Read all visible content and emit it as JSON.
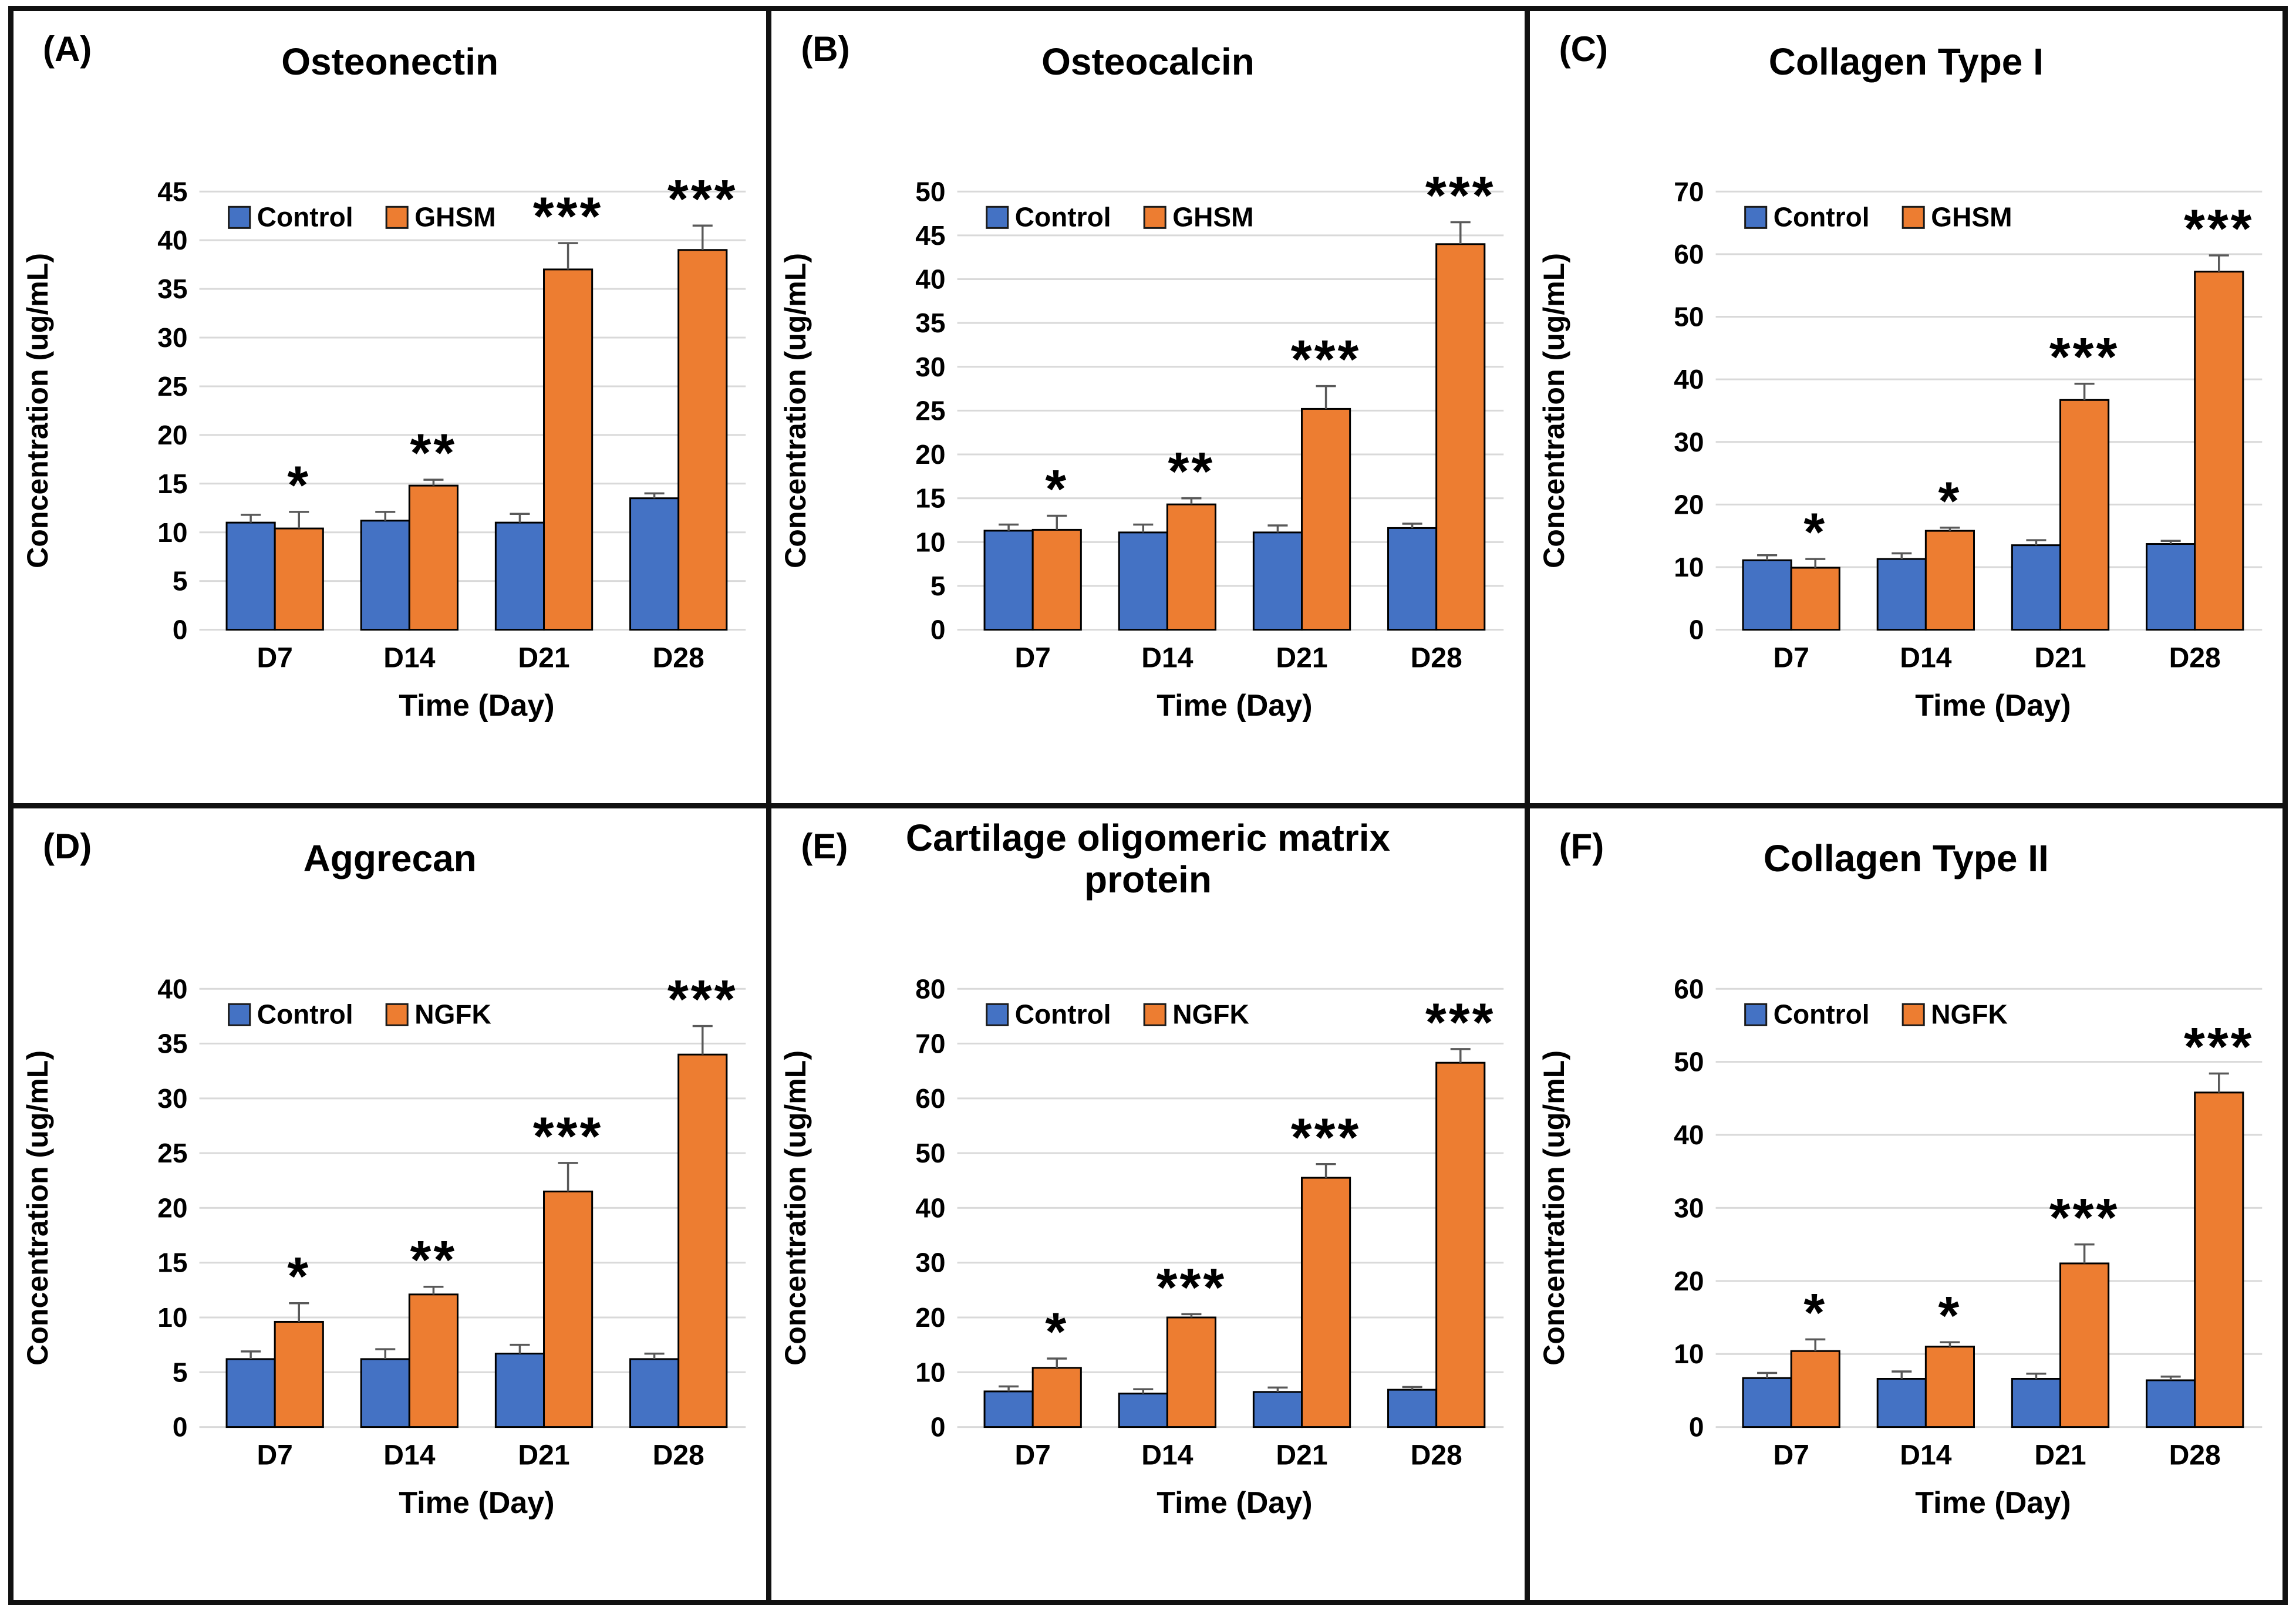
{
  "colors": {
    "control": "#4472C4",
    "treatment": "#ED7D31",
    "gridline": "#D9D9D9",
    "error_bar": "#595959",
    "bar_outline": "#000000",
    "frame": "#111111"
  },
  "chart_data": [
    {
      "type": "bar",
      "panel_label": "(A)",
      "title": "Osteonectin",
      "xlabel": "Time (Day)",
      "ylabel": "Concentration (ug/mL)",
      "ylim": [
        0,
        45
      ],
      "ytick_step": 5,
      "grid": true,
      "legend": [
        "Control",
        "GHSM"
      ],
      "legend_position": "top-left-inside",
      "categories": [
        "D7",
        "D14",
        "D21",
        "D28"
      ],
      "series": [
        {
          "name": "Control",
          "values": [
            11.0,
            11.2,
            11.0,
            13.5
          ],
          "errors": [
            0.8,
            0.9,
            0.9,
            0.5
          ]
        },
        {
          "name": "GHSM",
          "values": [
            10.4,
            14.8,
            37.0,
            39.0
          ],
          "errors": [
            1.7,
            0.6,
            2.7,
            2.5
          ]
        }
      ],
      "significance": [
        "*",
        "**",
        "***",
        "***"
      ]
    },
    {
      "type": "bar",
      "panel_label": "(B)",
      "title": "Osteocalcin",
      "xlabel": "Time (Day)",
      "ylabel": "Concentration (ug/mL)",
      "ylim": [
        0,
        50
      ],
      "ytick_step": 5,
      "grid": true,
      "legend": [
        "Control",
        "GHSM"
      ],
      "legend_position": "top-left-inside",
      "categories": [
        "D7",
        "D14",
        "D21",
        "D28"
      ],
      "series": [
        {
          "name": "Control",
          "values": [
            11.3,
            11.1,
            11.1,
            11.6
          ],
          "errors": [
            0.7,
            0.9,
            0.8,
            0.5
          ]
        },
        {
          "name": "GHSM",
          "values": [
            11.4,
            14.3,
            25.2,
            44.0
          ],
          "errors": [
            1.6,
            0.7,
            2.6,
            2.5
          ]
        }
      ],
      "significance": [
        "*",
        "**",
        "***",
        "***"
      ]
    },
    {
      "type": "bar",
      "panel_label": "(C)",
      "title": "Collagen Type I",
      "xlabel": "Time (Day)",
      "ylabel": "Concentration (ug/mL)",
      "ylim": [
        0,
        70
      ],
      "ytick_step": 10,
      "grid": true,
      "legend": [
        "Control",
        "GHSM"
      ],
      "legend_position": "top-left-inside",
      "categories": [
        "D7",
        "D14",
        "D21",
        "D28"
      ],
      "series": [
        {
          "name": "Control",
          "values": [
            11.1,
            11.3,
            13.5,
            13.7
          ],
          "errors": [
            0.8,
            0.9,
            0.8,
            0.5
          ]
        },
        {
          "name": "GHSM",
          "values": [
            9.9,
            15.8,
            36.7,
            57.2
          ],
          "errors": [
            1.4,
            0.5,
            2.6,
            2.6
          ]
        }
      ],
      "significance": [
        "*",
        "*",
        "***",
        "***"
      ]
    },
    {
      "type": "bar",
      "panel_label": "(D)",
      "title": "Aggrecan",
      "xlabel": "Time (Day)",
      "ylabel": "Concentration (ug/mL)",
      "ylim": [
        0,
        40
      ],
      "ytick_step": 5,
      "grid": true,
      "legend": [
        "Control",
        "NGFK"
      ],
      "legend_position": "top-left-inside",
      "categories": [
        "D7",
        "D14",
        "D21",
        "D28"
      ],
      "series": [
        {
          "name": "Control",
          "values": [
            6.2,
            6.2,
            6.7,
            6.2
          ],
          "errors": [
            0.7,
            0.9,
            0.8,
            0.5
          ]
        },
        {
          "name": "NGFK",
          "values": [
            9.6,
            12.1,
            21.5,
            34.0
          ],
          "errors": [
            1.7,
            0.7,
            2.6,
            2.6
          ]
        }
      ],
      "significance": [
        "*",
        "**",
        "***",
        "***"
      ]
    },
    {
      "type": "bar",
      "panel_label": "(E)",
      "title": "Cartilage oligomeric matrix protein",
      "xlabel": "Time (Day)",
      "ylabel": "Concentration (ug/mL)",
      "ylim": [
        0,
        80
      ],
      "ytick_step": 10,
      "grid": true,
      "legend": [
        "Control",
        "NGFK"
      ],
      "legend_position": "top-left-inside",
      "categories": [
        "D7",
        "D14",
        "D21",
        "D28"
      ],
      "series": [
        {
          "name": "Control",
          "values": [
            6.5,
            6.1,
            6.4,
            6.8
          ],
          "errors": [
            0.9,
            0.8,
            0.8,
            0.5
          ]
        },
        {
          "name": "NGFK",
          "values": [
            10.8,
            20.0,
            45.5,
            66.5
          ],
          "errors": [
            1.7,
            0.6,
            2.5,
            2.5
          ]
        }
      ],
      "significance": [
        "*",
        "***",
        "***",
        "***"
      ]
    },
    {
      "type": "bar",
      "panel_label": "(F)",
      "title": "Collagen Type II",
      "xlabel": "Time (Day)",
      "ylabel": "Concentration (ug/mL)",
      "ylim": [
        0,
        60
      ],
      "ytick_step": 10,
      "grid": true,
      "legend": [
        "Control",
        "NGFK"
      ],
      "legend_position": "top-left-inside",
      "categories": [
        "D7",
        "D14",
        "D21",
        "D28"
      ],
      "series": [
        {
          "name": "Control",
          "values": [
            6.7,
            6.6,
            6.6,
            6.4
          ],
          "errors": [
            0.7,
            1.0,
            0.7,
            0.5
          ]
        },
        {
          "name": "NGFK",
          "values": [
            10.4,
            11.0,
            22.4,
            45.8
          ],
          "errors": [
            1.6,
            0.6,
            2.6,
            2.6
          ]
        }
      ],
      "significance": [
        "*",
        "*",
        "***",
        "***"
      ]
    }
  ]
}
